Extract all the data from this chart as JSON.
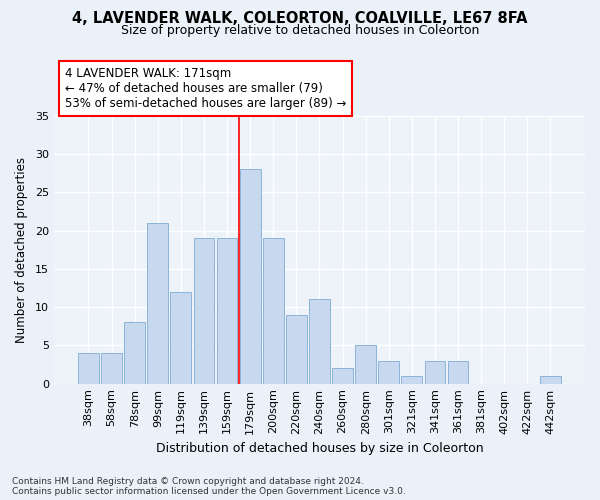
{
  "title1": "4, LAVENDER WALK, COLEORTON, COALVILLE, LE67 8FA",
  "title2": "Size of property relative to detached houses in Coleorton",
  "xlabel": "Distribution of detached houses by size in Coleorton",
  "ylabel": "Number of detached properties",
  "categories": [
    "38sqm",
    "58sqm",
    "78sqm",
    "99sqm",
    "119sqm",
    "139sqm",
    "159sqm",
    "179sqm",
    "200sqm",
    "220sqm",
    "240sqm",
    "260sqm",
    "280sqm",
    "301sqm",
    "321sqm",
    "341sqm",
    "361sqm",
    "381sqm",
    "402sqm",
    "422sqm",
    "442sqm"
  ],
  "values": [
    4,
    4,
    8,
    21,
    12,
    19,
    19,
    28,
    19,
    9,
    11,
    2,
    5,
    3,
    1,
    3,
    3,
    0,
    0,
    0,
    1
  ],
  "bar_color": "#c8d9ef",
  "bar_edge_color": "#8ab4d8",
  "vline_index": 6.5,
  "vline_color": "red",
  "annotation_text": "4 LAVENDER WALK: 171sqm\n← 47% of detached houses are smaller (79)\n53% of semi-detached houses are larger (89) →",
  "ylim": [
    0,
    35
  ],
  "yticks": [
    0,
    5,
    10,
    15,
    20,
    25,
    30,
    35
  ],
  "footer1": "Contains HM Land Registry data © Crown copyright and database right 2024.",
  "footer2": "Contains public sector information licensed under the Open Government Licence v3.0.",
  "bg_color": "#eaf1f8",
  "plot_bg_color": "#edf3f9",
  "grid_color": "#ffffff",
  "title1_fontsize": 10.5,
  "title2_fontsize": 9.0,
  "ylabel_fontsize": 8.5,
  "xlabel_fontsize": 9.0,
  "annot_fontsize": 8.5,
  "tick_fontsize": 8.0,
  "footer_fontsize": 6.5
}
